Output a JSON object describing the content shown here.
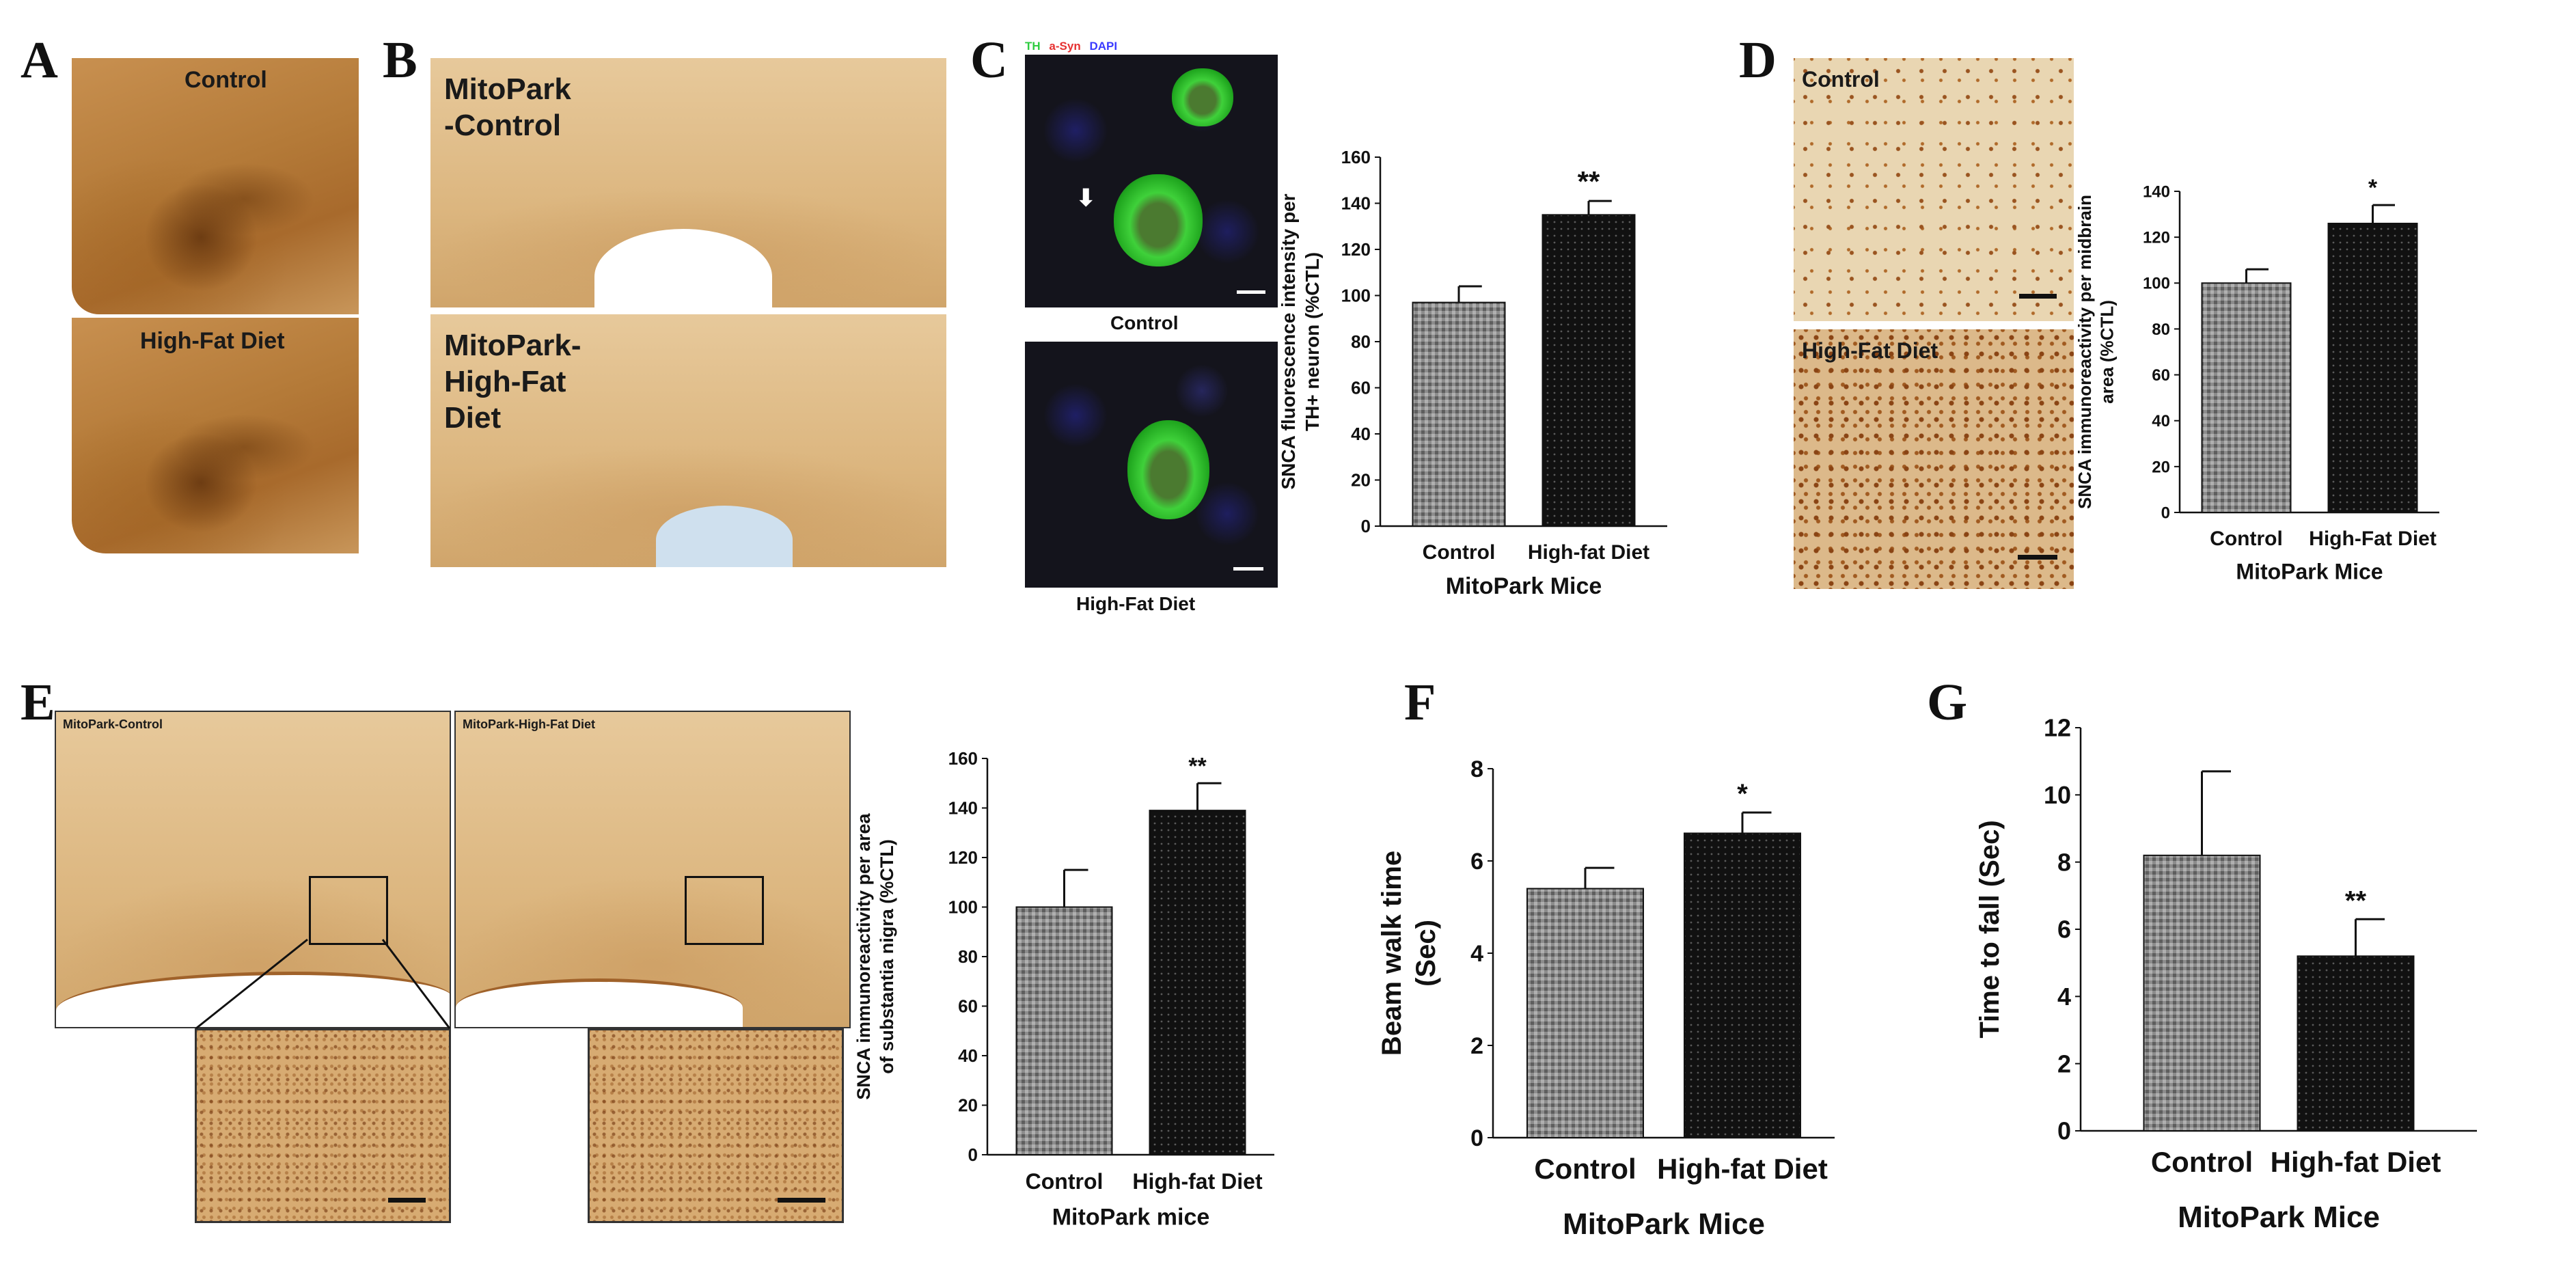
{
  "panel_labels": {
    "a": "A",
    "b": "B",
    "c": "C",
    "d": "D",
    "e": "E",
    "f": "F",
    "g": "G"
  },
  "micrographs": {
    "a_top": "Control",
    "a_bottom": "High-Fat Diet",
    "b_top": "MitoPark\n-Control",
    "b_bottom": "MitoPark-\nHigh-Fat\nDiet",
    "c_stain_th": "TH",
    "c_stain_asyn": "a-Syn",
    "c_stain_dapi": "DAPI",
    "c_top": "Control",
    "c_bottom": "High-Fat Diet",
    "d_top": "Control",
    "d_bottom": "High-Fat Diet",
    "e_left": "MitoPark-Control",
    "e_right": "MitoPark-High-Fat Diet"
  },
  "colors": {
    "ink": "#111111",
    "th": "#2ecc40",
    "asyn": "#e63030",
    "dapi": "#3a3aff",
    "bar_control": "#8c8c8c",
    "bar_hfd": "#111111"
  },
  "chart_data": [
    {
      "id": "C",
      "type": "bar",
      "categories": [
        "Control",
        "High-fat Diet"
      ],
      "values": [
        97,
        135
      ],
      "errors": [
        7,
        6
      ],
      "significance": [
        "",
        "**"
      ],
      "xlabel": "MitoPark Mice",
      "ylabel": "SNCA fluorescence intensity per TH+ neuron (%CTL)",
      "ylabel_lines": [
        "SNCA fluorescence intensity per",
        "TH+ neuron (%CTL)"
      ],
      "ylim": [
        0,
        160
      ],
      "yticks": [
        0,
        20,
        40,
        60,
        80,
        100,
        120,
        140,
        160
      ]
    },
    {
      "id": "D",
      "type": "bar",
      "categories": [
        "Control",
        "High-Fat Diet"
      ],
      "values": [
        100,
        126
      ],
      "errors": [
        6,
        8
      ],
      "significance": [
        "",
        "*"
      ],
      "xlabel": "MitoPark Mice",
      "ylabel": "SNCA immunoreactivity per midbrain area (%CTL)",
      "ylabel_lines": [
        "SNCA immunoreactivity per midbrain",
        "area (%CTL)"
      ],
      "ylim": [
        0,
        140
      ],
      "yticks": [
        0,
        20,
        40,
        60,
        80,
        100,
        120,
        140
      ]
    },
    {
      "id": "E",
      "type": "bar",
      "categories": [
        "Control",
        "High-fat Diet"
      ],
      "values": [
        100,
        139
      ],
      "errors": [
        15,
        11
      ],
      "significance": [
        "",
        "**"
      ],
      "xlabel": "MitoPark mice",
      "ylabel": "SNCA immunoreactivity per area of substantia nigra (%CTL)",
      "ylabel_lines": [
        "SNCA immunoreactivity per area",
        "of substantia nigra (%CTL)"
      ],
      "ylim": [
        0,
        160
      ],
      "yticks": [
        0,
        20,
        40,
        60,
        80,
        100,
        120,
        140,
        160
      ]
    },
    {
      "id": "F",
      "type": "bar",
      "categories": [
        "Control",
        "High-fat Diet"
      ],
      "values": [
        5.4,
        6.6
      ],
      "errors": [
        0.45,
        0.45
      ],
      "significance": [
        "",
        "*"
      ],
      "xlabel": "MitoPark Mice",
      "ylabel": "Beam walk time (Sec)",
      "ylabel_lines": [
        "Beam walk time",
        "(Sec)"
      ],
      "ylim": [
        0,
        8
      ],
      "yticks": [
        0,
        2,
        4,
        6,
        8
      ]
    },
    {
      "id": "G",
      "type": "bar",
      "categories": [
        "Control",
        "High-fat Diet"
      ],
      "values": [
        8.2,
        5.2
      ],
      "errors": [
        2.5,
        1.1
      ],
      "significance": [
        "",
        "**"
      ],
      "xlabel": "MitoPark Mice",
      "ylabel": "Time to fall (Sec)",
      "ylabel_lines": [
        "Time to fall (Sec)"
      ],
      "ylim": [
        0,
        12
      ],
      "yticks": [
        0,
        2,
        4,
        6,
        8,
        10,
        12
      ]
    }
  ]
}
